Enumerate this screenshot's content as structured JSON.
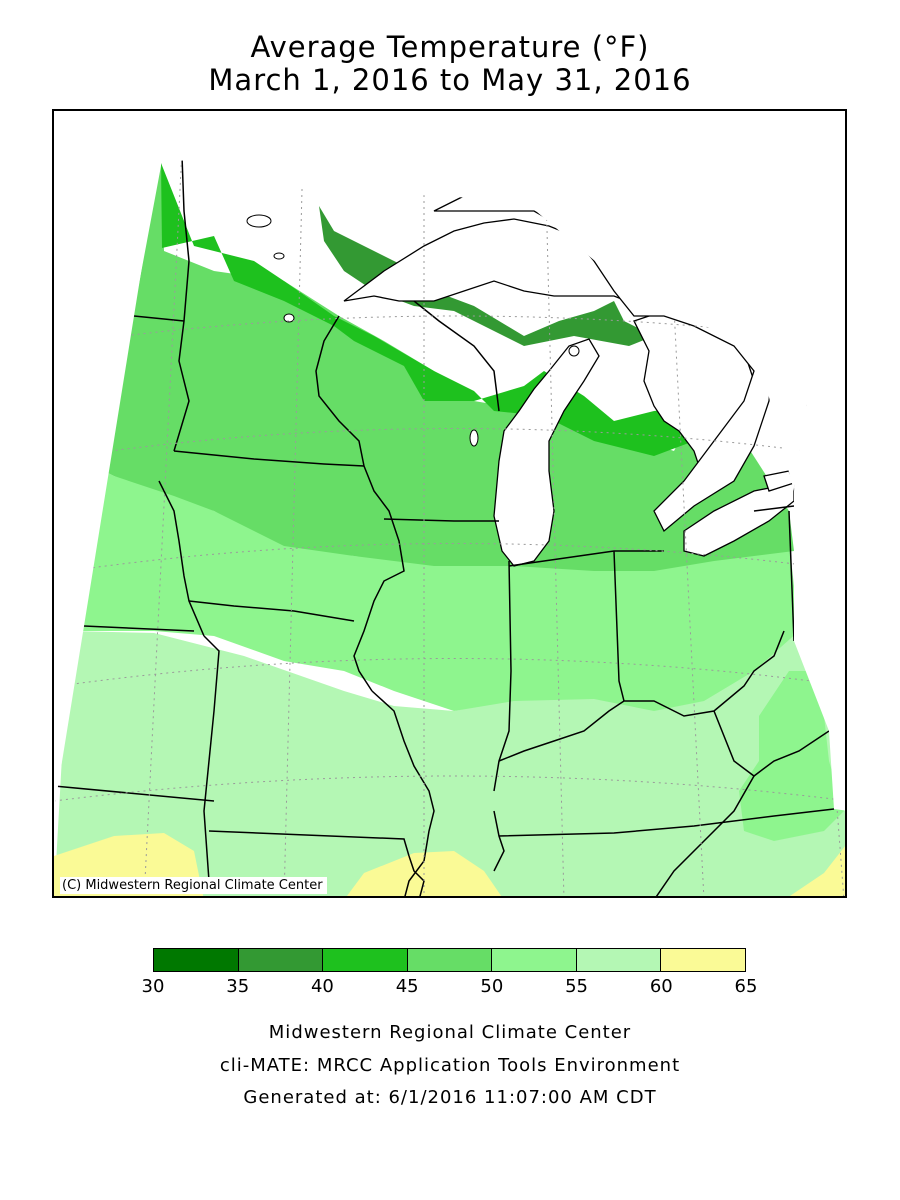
{
  "title": {
    "line1": "Average Temperature (°F)",
    "line2": "March 1, 2016 to May 31, 2016"
  },
  "map": {
    "copyright": "(C) Midwestern Regional Climate Center",
    "colors": {
      "lake": "#ffffff",
      "border": "#000000",
      "grid": "#9a9a9a"
    }
  },
  "legend": {
    "unit": "°F",
    "bins": [
      {
        "min": 30,
        "max": 35,
        "color": "#007800"
      },
      {
        "min": 35,
        "max": 40,
        "color": "#339933"
      },
      {
        "min": 40,
        "max": 45,
        "color": "#1ec11e"
      },
      {
        "min": 45,
        "max": 50,
        "color": "#66dd66"
      },
      {
        "min": 50,
        "max": 55,
        "color": "#8ef58e"
      },
      {
        "min": 55,
        "max": 60,
        "color": "#b4f7b4"
      },
      {
        "min": 60,
        "max": 65,
        "color": "#fafa96"
      }
    ],
    "ticks": [
      "30",
      "35",
      "40",
      "45",
      "50",
      "55",
      "60",
      "65"
    ]
  },
  "footer": {
    "line1": "Midwestern Regional Climate Center",
    "line2": "cli-MATE: MRCC Application Tools Environment",
    "line3": "Generated at: 6/1/2016 11:07:00 AM CDT"
  }
}
